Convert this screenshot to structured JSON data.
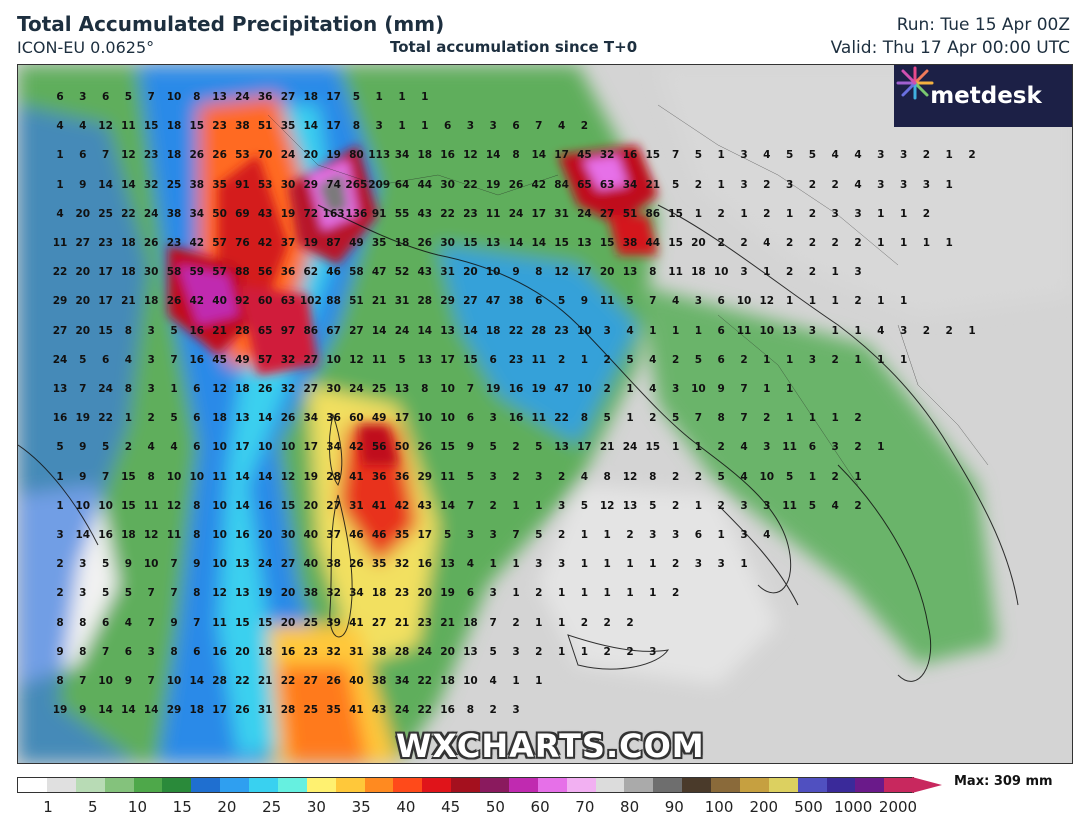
{
  "header": {
    "title": "Total Accumulated Precipitation (mm)",
    "model": "ICON-EU 0.0625°",
    "subtitle": "Total accumulation since T+0",
    "run": "Run: Tue 15 Apr 00Z",
    "valid": "Valid: Thu 17 Apr 00:00 UTC"
  },
  "logo": {
    "text": "metdesk"
  },
  "watermark": "WXCHARTS.COM",
  "legend": {
    "max_label": "Max: 309 mm",
    "ticks": [
      "1",
      "5",
      "10",
      "15",
      "20",
      "25",
      "30",
      "35",
      "40",
      "45",
      "50",
      "60",
      "70",
      "80",
      "90",
      "100",
      "200",
      "500",
      "1000",
      "2000"
    ],
    "colors": [
      "#ffffff",
      "#e0e0e0",
      "#b8dbb5",
      "#84c27c",
      "#4ea84a",
      "#2a8a3a",
      "#1f6fd0",
      "#2f9ff0",
      "#39d1f0",
      "#66f0e0",
      "#fff170",
      "#ffc83a",
      "#ff8a20",
      "#ff4a1a",
      "#e0141a",
      "#a4101e",
      "#8a1a5e",
      "#c02ab0",
      "#e670e8",
      "#f2b0f2",
      "#dcdcdc",
      "#aaaaaa",
      "#6e6e6e",
      "#4a3a2a",
      "#8a6a3a",
      "#c6a040",
      "#dcd060",
      "#5050c0",
      "#3a2a9a",
      "#6a1a8a",
      "#c8285e"
    ]
  },
  "map_values": [
    [
      "6",
      "3",
      "6",
      "5",
      "7",
      "10",
      "8",
      "13",
      "24",
      "36",
      "27",
      "18",
      "17",
      "5",
      "1",
      "1",
      "1"
    ],
    [
      "4",
      "4",
      "12",
      "11",
      "15",
      "18",
      "15",
      "23",
      "38",
      "51",
      "35",
      "14",
      "17",
      "8",
      "3",
      "1",
      "1",
      "6",
      "3",
      "3",
      "6",
      "7",
      "4",
      "2"
    ],
    [
      "1",
      "6",
      "7",
      "12",
      "23",
      "18",
      "26",
      "26",
      "53",
      "70",
      "24",
      "20",
      "19",
      "80",
      "113",
      "34",
      "18",
      "16",
      "12",
      "14",
      "8",
      "14",
      "17",
      "45",
      "32",
      "16",
      "15",
      "7",
      "5",
      "1",
      "3",
      "4",
      "5",
      "5",
      "4",
      "4",
      "3",
      "3",
      "2",
      "1",
      "2"
    ],
    [
      "1",
      "9",
      "14",
      "14",
      "32",
      "25",
      "38",
      "35",
      "91",
      "53",
      "30",
      "29",
      "74",
      "265",
      "209",
      "64",
      "44",
      "30",
      "22",
      "19",
      "26",
      "42",
      "84",
      "65",
      "63",
      "34",
      "21",
      "5",
      "2",
      "1",
      "3",
      "2",
      "3",
      "2",
      "2",
      "4",
      "3",
      "3",
      "3",
      "1"
    ],
    [
      "4",
      "20",
      "25",
      "22",
      "24",
      "38",
      "34",
      "50",
      "69",
      "43",
      "19",
      "72",
      "163",
      "136",
      "91",
      "55",
      "43",
      "22",
      "23",
      "11",
      "24",
      "17",
      "31",
      "24",
      "27",
      "51",
      "86",
      "15",
      "1",
      "2",
      "1",
      "2",
      "1",
      "2",
      "3",
      "3",
      "1",
      "1",
      "2"
    ],
    [
      "11",
      "27",
      "23",
      "18",
      "26",
      "23",
      "42",
      "57",
      "76",
      "42",
      "37",
      "19",
      "87",
      "49",
      "35",
      "18",
      "26",
      "30",
      "15",
      "13",
      "14",
      "14",
      "15",
      "13",
      "15",
      "38",
      "44",
      "15",
      "20",
      "2",
      "2",
      "4",
      "2",
      "2",
      "2",
      "2",
      "1",
      "1",
      "1",
      "1"
    ],
    [
      "22",
      "20",
      "17",
      "18",
      "30",
      "58",
      "59",
      "57",
      "88",
      "56",
      "36",
      "62",
      "46",
      "58",
      "47",
      "52",
      "43",
      "31",
      "20",
      "10",
      "9",
      "8",
      "12",
      "17",
      "20",
      "13",
      "8",
      "11",
      "18",
      "10",
      "3",
      "1",
      "2",
      "2",
      "1",
      "3"
    ],
    [
      "29",
      "20",
      "17",
      "21",
      "18",
      "26",
      "42",
      "40",
      "92",
      "60",
      "63",
      "102",
      "88",
      "51",
      "21",
      "31",
      "28",
      "29",
      "27",
      "47",
      "38",
      "6",
      "5",
      "9",
      "11",
      "5",
      "7",
      "4",
      "3",
      "6",
      "10",
      "12",
      "1",
      "1",
      "1",
      "2",
      "1",
      "1"
    ],
    [
      "27",
      "20",
      "15",
      "8",
      "3",
      "5",
      "16",
      "21",
      "28",
      "65",
      "97",
      "86",
      "67",
      "27",
      "14",
      "24",
      "14",
      "13",
      "14",
      "18",
      "22",
      "28",
      "23",
      "10",
      "3",
      "4",
      "1",
      "1",
      "1",
      "6",
      "11",
      "10",
      "13",
      "3",
      "1",
      "1",
      "4",
      "3",
      "2",
      "2",
      "1"
    ],
    [
      "24",
      "5",
      "6",
      "4",
      "3",
      "7",
      "16",
      "45",
      "49",
      "57",
      "32",
      "27",
      "10",
      "12",
      "11",
      "5",
      "13",
      "17",
      "15",
      "6",
      "23",
      "11",
      "2",
      "1",
      "2",
      "5",
      "4",
      "2",
      "5",
      "6",
      "2",
      "1",
      "1",
      "3",
      "2",
      "1",
      "1",
      "1"
    ],
    [
      "13",
      "7",
      "24",
      "8",
      "3",
      "1",
      "6",
      "12",
      "18",
      "26",
      "32",
      "27",
      "30",
      "24",
      "25",
      "13",
      "8",
      "10",
      "7",
      "19",
      "16",
      "19",
      "47",
      "10",
      "2",
      "1",
      "4",
      "3",
      "10",
      "9",
      "7",
      "1",
      "1"
    ],
    [
      "16",
      "19",
      "22",
      "1",
      "2",
      "5",
      "6",
      "18",
      "13",
      "14",
      "26",
      "34",
      "36",
      "60",
      "49",
      "17",
      "10",
      "10",
      "6",
      "3",
      "16",
      "11",
      "22",
      "8",
      "5",
      "1",
      "2",
      "5",
      "7",
      "8",
      "7",
      "2",
      "1",
      "1",
      "1",
      "2"
    ],
    [
      "5",
      "9",
      "5",
      "2",
      "4",
      "4",
      "6",
      "10",
      "17",
      "10",
      "10",
      "17",
      "34",
      "42",
      "56",
      "50",
      "26",
      "15",
      "9",
      "5",
      "2",
      "5",
      "13",
      "17",
      "21",
      "24",
      "15",
      "1",
      "1",
      "2",
      "4",
      "3",
      "11",
      "6",
      "3",
      "2",
      "1"
    ],
    [
      "1",
      "9",
      "7",
      "15",
      "8",
      "10",
      "10",
      "11",
      "14",
      "14",
      "12",
      "19",
      "28",
      "41",
      "36",
      "36",
      "29",
      "11",
      "5",
      "3",
      "2",
      "3",
      "2",
      "4",
      "8",
      "12",
      "8",
      "2",
      "2",
      "5",
      "4",
      "10",
      "5",
      "1",
      "2",
      "1"
    ],
    [
      "1",
      "10",
      "10",
      "15",
      "11",
      "12",
      "8",
      "10",
      "14",
      "16",
      "15",
      "20",
      "27",
      "31",
      "41",
      "42",
      "43",
      "14",
      "7",
      "2",
      "1",
      "1",
      "3",
      "5",
      "12",
      "13",
      "5",
      "2",
      "1",
      "2",
      "3",
      "3",
      "11",
      "5",
      "4",
      "2"
    ],
    [
      "3",
      "14",
      "16",
      "18",
      "12",
      "11",
      "8",
      "10",
      "16",
      "20",
      "30",
      "40",
      "37",
      "46",
      "46",
      "35",
      "17",
      "5",
      "3",
      "3",
      "7",
      "5",
      "2",
      "1",
      "1",
      "2",
      "3",
      "3",
      "6",
      "1",
      "3",
      "4"
    ],
    [
      "2",
      "3",
      "5",
      "9",
      "10",
      "7",
      "9",
      "10",
      "13",
      "24",
      "27",
      "40",
      "38",
      "26",
      "35",
      "32",
      "16",
      "13",
      "4",
      "1",
      "1",
      "3",
      "3",
      "1",
      "1",
      "1",
      "1",
      "2",
      "3",
      "3",
      "1"
    ],
    [
      "2",
      "3",
      "5",
      "5",
      "7",
      "7",
      "8",
      "12",
      "13",
      "19",
      "20",
      "38",
      "32",
      "34",
      "18",
      "23",
      "20",
      "19",
      "6",
      "3",
      "1",
      "2",
      "1",
      "1",
      "1",
      "1",
      "1",
      "2"
    ],
    [
      "8",
      "8",
      "6",
      "4",
      "7",
      "9",
      "7",
      "11",
      "15",
      "15",
      "20",
      "25",
      "39",
      "41",
      "27",
      "21",
      "23",
      "21",
      "18",
      "7",
      "2",
      "1",
      "1",
      "2",
      "2",
      "2"
    ],
    [
      "9",
      "8",
      "7",
      "6",
      "3",
      "8",
      "6",
      "16",
      "20",
      "18",
      "16",
      "23",
      "32",
      "31",
      "38",
      "28",
      "24",
      "20",
      "13",
      "5",
      "3",
      "2",
      "1",
      "1",
      "2",
      "2",
      "3"
    ],
    [
      "8",
      "7",
      "10",
      "9",
      "7",
      "10",
      "14",
      "28",
      "22",
      "21",
      "22",
      "27",
      "26",
      "40",
      "38",
      "34",
      "22",
      "18",
      "10",
      "4",
      "1",
      "1"
    ],
    [
      "19",
      "9",
      "14",
      "14",
      "14",
      "29",
      "18",
      "17",
      "26",
      "31",
      "28",
      "25",
      "35",
      "41",
      "43",
      "24",
      "22",
      "16",
      "8",
      "2",
      "3"
    ]
  ]
}
